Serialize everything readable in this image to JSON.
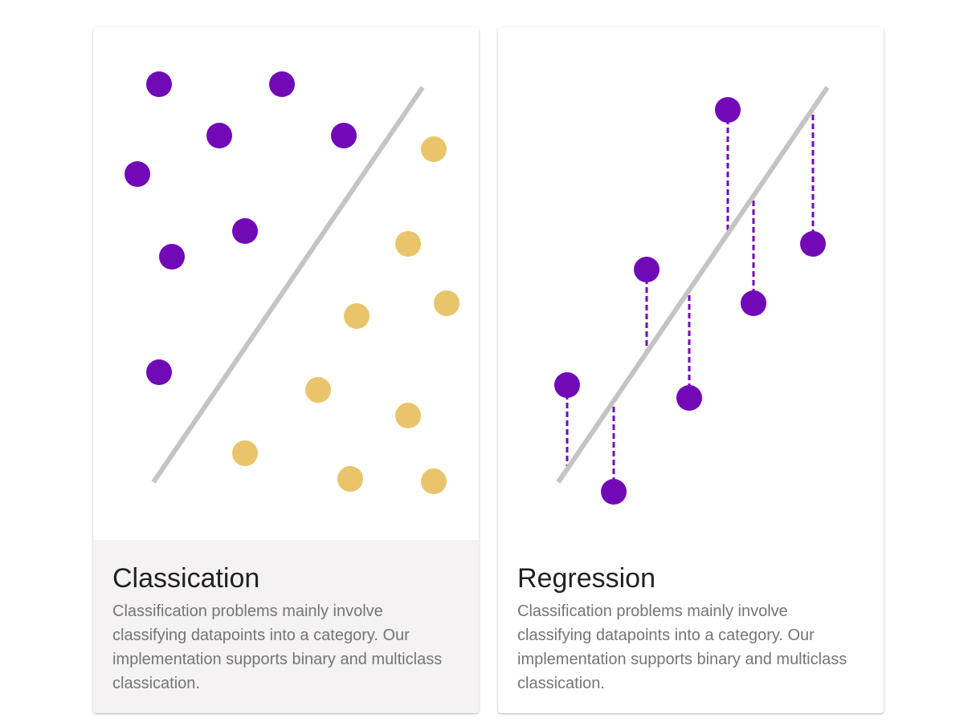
{
  "colors": {
    "class_a": "#7209b7",
    "class_b": "#e9c46a",
    "line": "#c4c4c4",
    "residual": "#7209b7",
    "hover_bg": "#f4f2f2"
  },
  "cards": [
    {
      "title": "Classication",
      "description": "Classification problems mainly involve classifying datapoints into a category. Our implementation supports binary and multiclass classication."
    },
    {
      "title": "Regression",
      "description": "Classification problems mainly involve classifying datapoints into a category. Our implementation supports binary and multiclass classication."
    }
  ],
  "chart_data": [
    {
      "type": "scatter",
      "series": [
        {
          "class": "purple",
          "points": [
            [
              82,
              71
            ],
            [
              235,
              71
            ],
            [
              157,
              135
            ],
            [
              312,
              135
            ],
            [
              55,
              183
            ],
            [
              189,
              254
            ],
            [
              98,
              286
            ],
            [
              82,
              430
            ]
          ]
        },
        {
          "class": "gold",
          "points": [
            [
              424,
              152
            ],
            [
              392,
              270
            ],
            [
              440,
              344
            ],
            [
              328,
              360
            ],
            [
              280,
              452
            ],
            [
              392,
              484
            ],
            [
              189,
              531
            ],
            [
              320,
              563
            ],
            [
              424,
              566
            ]
          ]
        }
      ],
      "decision_line": [
        [
          75,
          567
        ],
        [
          410,
          75
        ]
      ]
    },
    {
      "type": "scatter",
      "series": [
        {
          "class": "purple",
          "points": [
            [
              86,
              446
            ],
            [
              144,
              579
            ],
            [
              185,
              302
            ],
            [
              238,
              462
            ],
            [
              286,
              103
            ],
            [
              318,
              344
            ],
            [
              392,
              270
            ]
          ]
        }
      ],
      "regression_line": [
        [
          75,
          567
        ],
        [
          410,
          75
        ]
      ],
      "residuals": true
    }
  ]
}
